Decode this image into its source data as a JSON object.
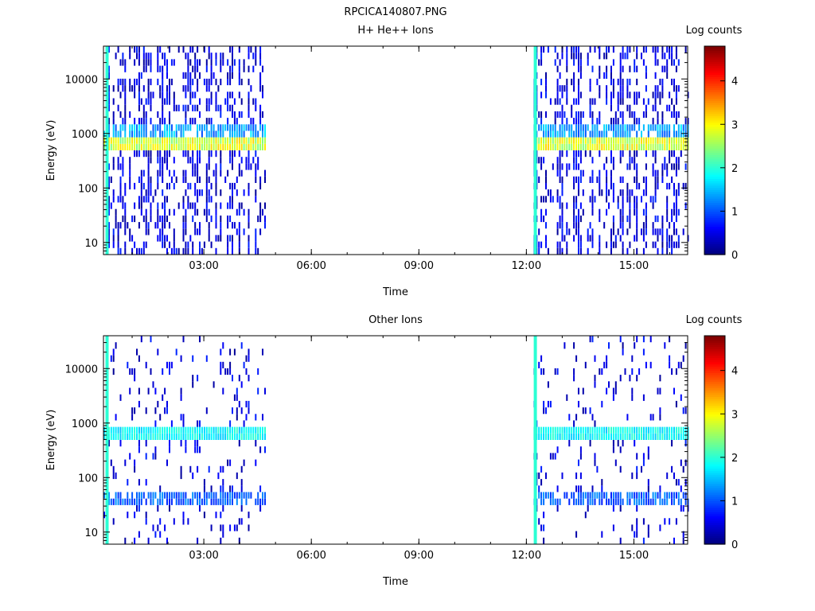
{
  "figure": {
    "title": "RPCICA140807.PNG"
  },
  "chart_data": [
    {
      "type": "heatmap",
      "title": "H+ He++ Ions",
      "xlabel": "Time",
      "ylabel": "Energy (eV)",
      "x_ticks": [
        "03:00",
        "06:00",
        "09:00",
        "12:00",
        "15:00"
      ],
      "x_tick_hours": [
        3,
        6,
        9,
        12,
        15
      ],
      "xlim_hours": [
        0.2,
        16.5
      ],
      "y_scale": "log",
      "y_ticks": [
        "10",
        "100",
        "1000",
        "10000"
      ],
      "y_tick_values": [
        10,
        100,
        1000,
        10000
      ],
      "ylim": [
        6,
        40000
      ],
      "colorbar": {
        "label": "Log counts",
        "ticks": [
          "0",
          "1",
          "2",
          "3",
          "4"
        ],
        "tick_values": [
          0,
          1,
          2,
          3,
          4
        ],
        "range": [
          0,
          4.8
        ]
      },
      "data_intervals_hours": [
        [
          0.2,
          4.7
        ],
        [
          12.2,
          16.5
        ]
      ],
      "features": {
        "peak_band_eV": [
          450,
          750
        ],
        "peak_level": 2.8,
        "secondary_band_eV": [
          750,
          1500
        ],
        "secondary_level": 1.6,
        "scan_lines_hours": [
          0.3,
          12.25
        ],
        "scan_line_level": 2.0
      }
    },
    {
      "type": "heatmap",
      "title": "Other Ions",
      "xlabel": "Time",
      "ylabel": "Energy (eV)",
      "x_ticks": [
        "03:00",
        "06:00",
        "09:00",
        "12:00",
        "15:00"
      ],
      "x_tick_hours": [
        3,
        6,
        9,
        12,
        15
      ],
      "xlim_hours": [
        0.2,
        16.5
      ],
      "y_scale": "log",
      "y_ticks": [
        "10",
        "100",
        "1000",
        "10000"
      ],
      "y_tick_values": [
        10,
        100,
        1000,
        10000
      ],
      "ylim": [
        6,
        40000
      ],
      "colorbar": {
        "label": "Log counts",
        "ticks": [
          "0",
          "1",
          "2",
          "3",
          "4"
        ],
        "tick_values": [
          0,
          1,
          2,
          3,
          4
        ],
        "range": [
          0,
          4.8
        ]
      },
      "data_intervals_hours": [
        [
          0.2,
          4.7
        ],
        [
          12.2,
          16.5
        ]
      ],
      "features": {
        "peak_band_eV": [
          450,
          750
        ],
        "peak_level": 1.8,
        "secondary_band_eV": [
          28,
          50
        ],
        "secondary_level": 1.2,
        "scan_lines_hours": [
          0.3,
          12.25
        ],
        "scan_line_level": 2.0
      }
    }
  ]
}
